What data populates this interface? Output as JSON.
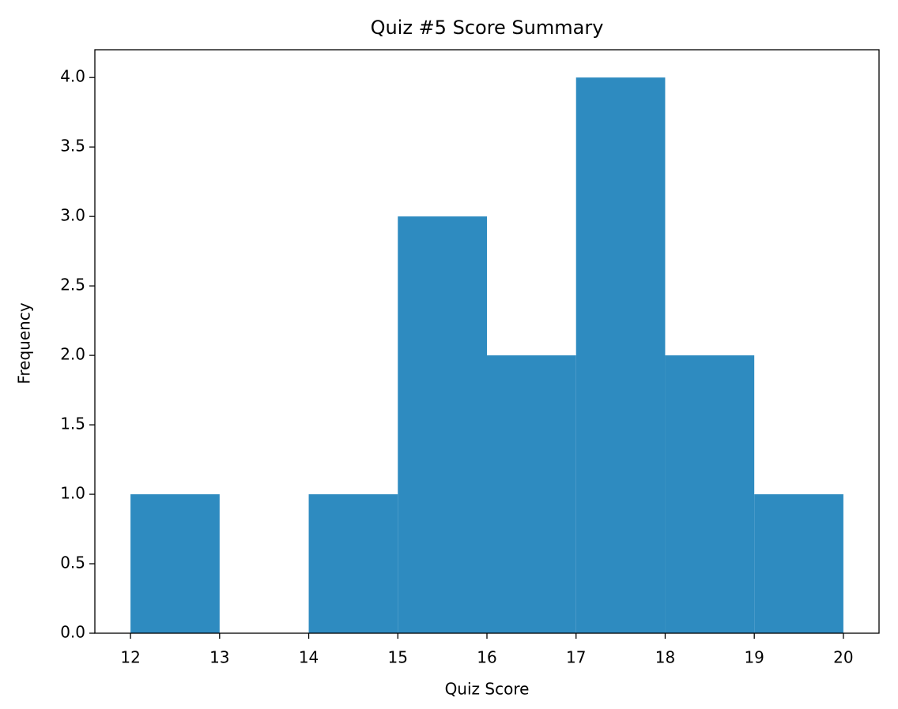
{
  "chart_data": {
    "type": "histogram",
    "title": "Quiz #5 Score Summary",
    "x_label": "Quiz Score",
    "y_label": "Frequency",
    "bins": [
      12,
      13,
      14,
      15,
      16,
      17,
      18,
      19,
      20
    ],
    "values": [
      1,
      0,
      1,
      3,
      2,
      4,
      2,
      1
    ],
    "color": "#2e8bc0",
    "xlim": [
      11.6,
      20.4
    ],
    "xticks": [
      12,
      13,
      14,
      15,
      16,
      17,
      18,
      19,
      20
    ],
    "ylim": [
      0,
      4.2
    ],
    "yticks": [
      {
        "value": 0,
        "label": "0.0"
      },
      {
        "value": 0.5,
        "label": "0.5"
      },
      {
        "value": 1,
        "label": "1.0"
      },
      {
        "value": 1.5,
        "label": "1.5"
      },
      {
        "value": 2,
        "label": "2.0"
      },
      {
        "value": 2.5,
        "label": "2.5"
      },
      {
        "value": 3,
        "label": "3.0"
      },
      {
        "value": 3.5,
        "label": "3.5"
      },
      {
        "value": 4,
        "label": "4.0"
      }
    ],
    "grid": false
  }
}
